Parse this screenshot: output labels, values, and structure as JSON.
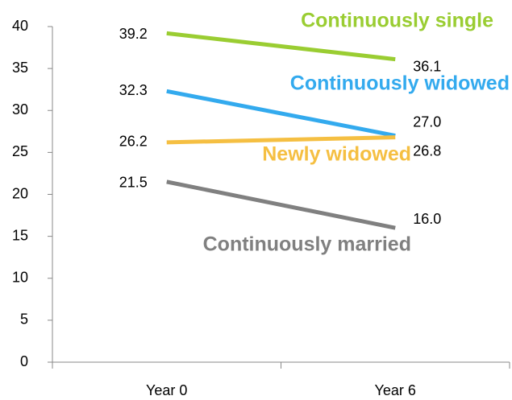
{
  "chart_data": {
    "type": "line",
    "categories": [
      "Year 0",
      "Year 6"
    ],
    "series": [
      {
        "name": "Continuously single",
        "color": "#9acd32",
        "values": [
          39.2,
          36.1
        ],
        "value_labels": [
          "39.2",
          "36.1"
        ]
      },
      {
        "name": "Continuously widowed",
        "color": "#33aaee",
        "values": [
          32.3,
          27.0
        ],
        "value_labels": [
          "32.3",
          "27.0"
        ]
      },
      {
        "name": "Newly widowed",
        "color": "#f5bf42",
        "values": [
          26.2,
          26.8
        ],
        "value_labels": [
          "26.2",
          "26.8"
        ]
      },
      {
        "name": "Continuously married",
        "color": "#808080",
        "values": [
          21.5,
          16.0
        ],
        "value_labels": [
          "21.5",
          "16.0"
        ]
      }
    ],
    "ylim": [
      0,
      40
    ],
    "yticks": [
      0,
      5,
      10,
      15,
      20,
      25,
      30,
      35,
      40
    ],
    "grid": false
  }
}
